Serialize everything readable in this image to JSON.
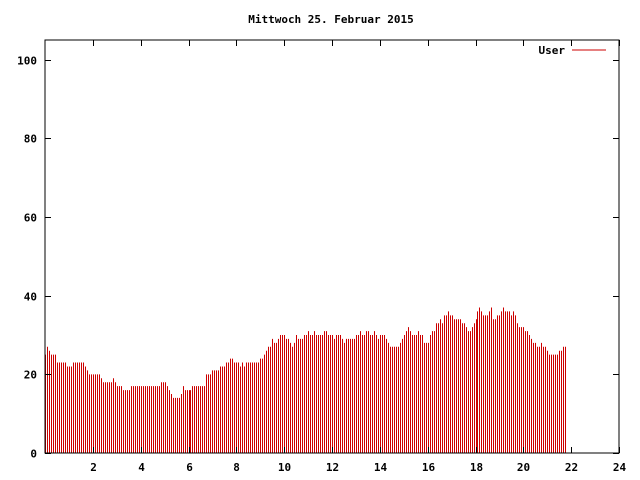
{
  "chart_data": {
    "type": "bar",
    "title": "Mittwoch 25. Februar 2015",
    "xlabel": "",
    "ylabel": "",
    "xlim": [
      0,
      24
    ],
    "ylim": [
      0,
      105
    ],
    "x_tick_labels": [
      "2",
      "4",
      "6",
      "8",
      "10",
      "12",
      "14",
      "16",
      "18",
      "20",
      "22",
      "24"
    ],
    "y_tick_labels": [
      "0",
      "20",
      "40",
      "60",
      "80",
      "100"
    ],
    "grid": false,
    "legend_position": "top-right",
    "series": [
      {
        "name": "User",
        "color": "#cc0000",
        "interval_minutes": 5,
        "values": [
          25,
          27,
          26,
          25,
          25,
          25,
          23,
          23,
          23,
          23,
          23,
          22,
          22,
          22,
          23,
          23,
          23,
          23,
          23,
          23,
          22,
          21,
          20,
          20,
          20,
          20,
          20,
          20,
          19,
          18,
          18,
          18,
          18,
          18,
          19,
          18,
          17,
          17,
          17,
          16,
          16,
          16,
          16,
          17,
          17,
          17,
          17,
          17,
          17,
          17,
          17,
          17,
          17,
          17,
          17,
          17,
          17,
          17,
          18,
          18,
          18,
          17,
          16,
          15,
          14,
          14,
          14,
          14,
          15,
          17,
          16,
          16,
          16,
          16,
          17,
          17,
          17,
          17,
          17,
          17,
          17,
          20,
          20,
          20,
          21,
          21,
          21,
          21,
          22,
          22,
          22,
          23,
          23,
          24,
          24,
          23,
          23,
          23,
          22,
          23,
          22,
          23,
          23,
          23,
          23,
          23,
          23,
          23,
          24,
          24,
          25,
          26,
          27,
          27,
          29,
          28,
          28,
          29,
          30,
          30,
          30,
          29,
          29,
          28,
          27,
          28,
          30,
          29,
          29,
          29,
          30,
          30,
          31,
          30,
          30,
          31,
          30,
          30,
          30,
          30,
          31,
          31,
          30,
          30,
          30,
          29,
          30,
          30,
          30,
          29,
          28,
          29,
          29,
          29,
          29,
          29,
          30,
          30,
          31,
          30,
          30,
          31,
          31,
          30,
          30,
          31,
          30,
          29,
          30,
          30,
          30,
          29,
          28,
          27,
          27,
          27,
          27,
          27,
          28,
          29,
          30,
          31,
          32,
          31,
          30,
          30,
          30,
          31,
          30,
          30,
          28,
          28,
          28,
          30,
          31,
          31,
          33,
          33,
          34,
          33,
          35,
          35,
          36,
          35,
          35,
          34,
          34,
          34,
          34,
          33,
          33,
          32,
          31,
          31,
          32,
          33,
          34,
          36,
          37,
          36,
          35,
          35,
          35,
          36,
          37,
          34,
          34,
          35,
          35,
          36,
          37,
          36,
          36,
          36,
          35,
          36,
          35,
          33,
          32,
          32,
          32,
          31,
          31,
          30,
          29,
          28,
          28,
          27,
          27,
          28,
          27,
          27,
          26,
          25,
          25,
          25,
          25,
          25,
          26,
          26,
          27,
          27
        ]
      }
    ]
  }
}
